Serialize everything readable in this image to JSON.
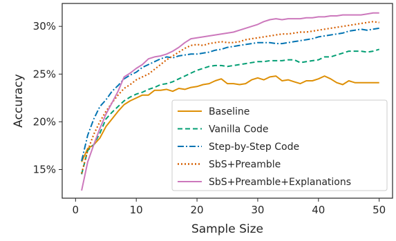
{
  "chart_data": {
    "type": "line",
    "xlabel": "Sample Size",
    "ylabel": "Accuracy",
    "xlim": [
      -2.2,
      52.2
    ],
    "ylim": [
      12.0,
      32.4
    ],
    "xticks": [
      0,
      10,
      20,
      30,
      40,
      50
    ],
    "xtick_labels": [
      "0",
      "10",
      "20",
      "30",
      "40",
      "50"
    ],
    "yticks": [
      15,
      20,
      25,
      30
    ],
    "ytick_labels": [
      "15%",
      "20%",
      "25%",
      "30%"
    ],
    "legend_position": "lower-right",
    "grid": false,
    "x": [
      1,
      2,
      3,
      4,
      5,
      6,
      7,
      8,
      9,
      10,
      11,
      12,
      13,
      14,
      15,
      16,
      17,
      18,
      19,
      20,
      21,
      22,
      23,
      24,
      25,
      26,
      27,
      28,
      29,
      30,
      31,
      32,
      33,
      34,
      35,
      36,
      37,
      38,
      39,
      40,
      41,
      42,
      43,
      44,
      45,
      46,
      47,
      48,
      49,
      50
    ],
    "series": [
      {
        "name": "Baseline",
        "color": "#DE8F05",
        "dash": "solid",
        "values": [
          15.8,
          17.2,
          17.6,
          18.3,
          19.5,
          20.3,
          21.1,
          21.8,
          22.2,
          22.5,
          22.8,
          22.8,
          23.3,
          23.3,
          23.4,
          23.2,
          23.5,
          23.4,
          23.6,
          23.7,
          23.9,
          24.0,
          24.3,
          24.5,
          24.0,
          24.0,
          23.9,
          24.0,
          24.4,
          24.6,
          24.4,
          24.7,
          24.8,
          24.3,
          24.4,
          24.2,
          24.0,
          24.3,
          24.3,
          24.5,
          24.8,
          24.5,
          24.1,
          23.9,
          24.3,
          24.1,
          24.1,
          24.1,
          24.1,
          24.1
        ]
      },
      {
        "name": "Vanilla Code",
        "color": "#029E73",
        "dash": "dashed",
        "values": [
          14.5,
          17.0,
          17.6,
          18.8,
          20.3,
          21.0,
          21.6,
          22.2,
          22.6,
          22.9,
          23.1,
          23.4,
          23.6,
          23.9,
          24.0,
          24.2,
          24.5,
          24.8,
          25.1,
          25.4,
          25.6,
          25.8,
          25.9,
          25.9,
          25.8,
          25.9,
          26.0,
          26.1,
          26.2,
          26.3,
          26.3,
          26.4,
          26.4,
          26.4,
          26.5,
          26.5,
          26.2,
          26.3,
          26.4,
          26.5,
          26.8,
          26.8,
          27.0,
          27.2,
          27.4,
          27.4,
          27.4,
          27.3,
          27.4,
          27.6
        ]
      },
      {
        "name": "Step-by-Step Code",
        "color": "#0173B2",
        "dash": "dashdot",
        "values": [
          15.9,
          18.6,
          20.3,
          21.6,
          22.3,
          23.2,
          23.8,
          24.5,
          24.9,
          25.2,
          25.7,
          26.0,
          26.3,
          26.6,
          26.8,
          26.7,
          26.9,
          27.0,
          27.1,
          27.1,
          27.2,
          27.3,
          27.5,
          27.6,
          27.8,
          27.9,
          28.0,
          28.1,
          28.2,
          28.3,
          28.3,
          28.3,
          28.2,
          28.2,
          28.3,
          28.4,
          28.5,
          28.6,
          28.7,
          28.9,
          29.0,
          29.1,
          29.2,
          29.3,
          29.5,
          29.6,
          29.7,
          29.6,
          29.7,
          29.8
        ]
      },
      {
        "name": "SbS+Preamble",
        "color": "#D55E00",
        "dash": "dotted",
        "values": [
          14.6,
          17.0,
          18.7,
          20.0,
          21.1,
          22.0,
          22.8,
          23.5,
          23.9,
          24.4,
          24.7,
          25.0,
          25.5,
          26.0,
          26.5,
          26.9,
          27.3,
          27.7,
          28.0,
          28.1,
          28.0,
          28.2,
          28.3,
          28.4,
          28.3,
          28.3,
          28.4,
          28.6,
          28.7,
          28.8,
          28.9,
          29.0,
          29.1,
          29.2,
          29.2,
          29.3,
          29.4,
          29.4,
          29.5,
          29.6,
          29.7,
          29.8,
          29.9,
          30.0,
          30.1,
          30.2,
          30.3,
          30.4,
          30.5,
          30.4
        ]
      },
      {
        "name": "SbS+Preamble+Explanations",
        "color": "#CC78BC",
        "dash": "solid",
        "values": [
          12.8,
          15.8,
          17.6,
          19.3,
          20.8,
          22.0,
          23.2,
          24.7,
          25.1,
          25.6,
          26.0,
          26.6,
          26.8,
          26.9,
          27.1,
          27.4,
          27.8,
          28.3,
          28.7,
          28.8,
          28.9,
          29.0,
          29.1,
          29.2,
          29.3,
          29.4,
          29.6,
          29.8,
          30.0,
          30.2,
          30.5,
          30.7,
          30.8,
          30.7,
          30.8,
          30.8,
          30.8,
          30.9,
          30.9,
          31.0,
          31.0,
          31.1,
          31.1,
          31.2,
          31.2,
          31.2,
          31.2,
          31.3,
          31.4,
          31.4
        ]
      }
    ]
  }
}
